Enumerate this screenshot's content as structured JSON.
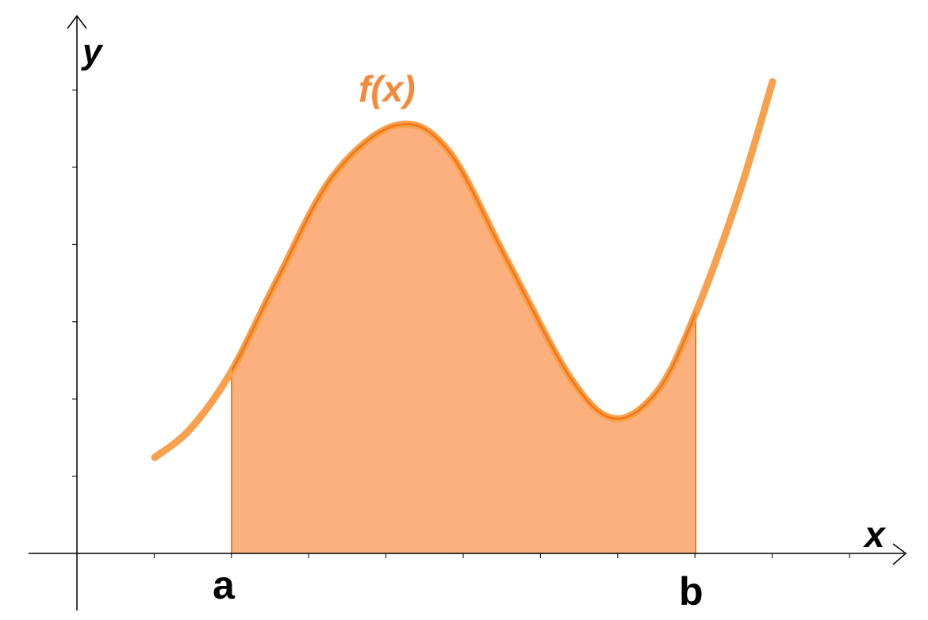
{
  "axes": {
    "x_label": "x",
    "y_label": "y"
  },
  "function_label": "f(x)",
  "bounds": {
    "lower": "a",
    "upper": "b"
  },
  "colors": {
    "curve": "#f9a04c",
    "curve_dark": "#f07a1c",
    "fill": "#fbb07e",
    "label": "#f5883a",
    "axis": "#000000"
  }
}
